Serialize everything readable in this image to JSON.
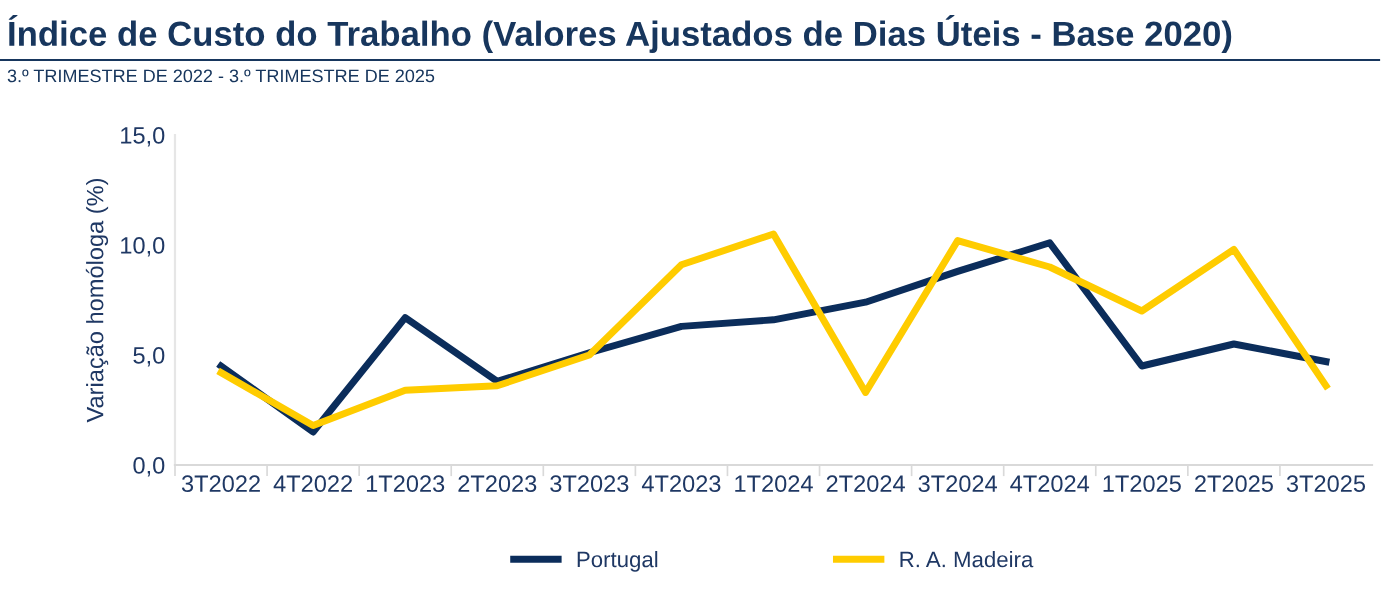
{
  "chart_data": {
    "type": "line",
    "title": "Índice de Custo do Trabalho (Valores Ajustados de Dias Úteis - Base 2020)",
    "subtitle": "3.º TRIMESTRE DE 2022 - 3.º TRIMESTRE DE 2025",
    "ylabel": "Variação homóloga (%)",
    "categories": [
      "3T2022",
      "4T2022",
      "1T2023",
      "2T2023",
      "3T2023",
      "4T2023",
      "1T2024",
      "2T2024",
      "3T2024",
      "4T2024",
      "1T2025",
      "2T2025",
      "3T2025"
    ],
    "series": [
      {
        "name": "Portugal",
        "color": "#0b2d5b",
        "values": [
          4.5,
          1.5,
          6.7,
          3.8,
          5.1,
          6.3,
          6.6,
          7.4,
          8.8,
          10.1,
          4.5,
          5.5,
          4.7
        ]
      },
      {
        "name": "R. A. Madeira",
        "color": "#ffcc00",
        "values": [
          4.2,
          1.8,
          3.4,
          3.6,
          5.0,
          9.1,
          10.5,
          3.3,
          10.2,
          9.0,
          7.0,
          9.8,
          3.6
        ]
      }
    ],
    "ylim": [
      0,
      15
    ],
    "yticks": [
      {
        "value": 0,
        "label": "0,0"
      },
      {
        "value": 5,
        "label": "5,0"
      },
      {
        "value": 10,
        "label": "10,0"
      },
      {
        "value": 15,
        "label": "15,0"
      }
    ],
    "grid": false,
    "legend": "bottom",
    "marker": "none",
    "line_style": "solid"
  }
}
